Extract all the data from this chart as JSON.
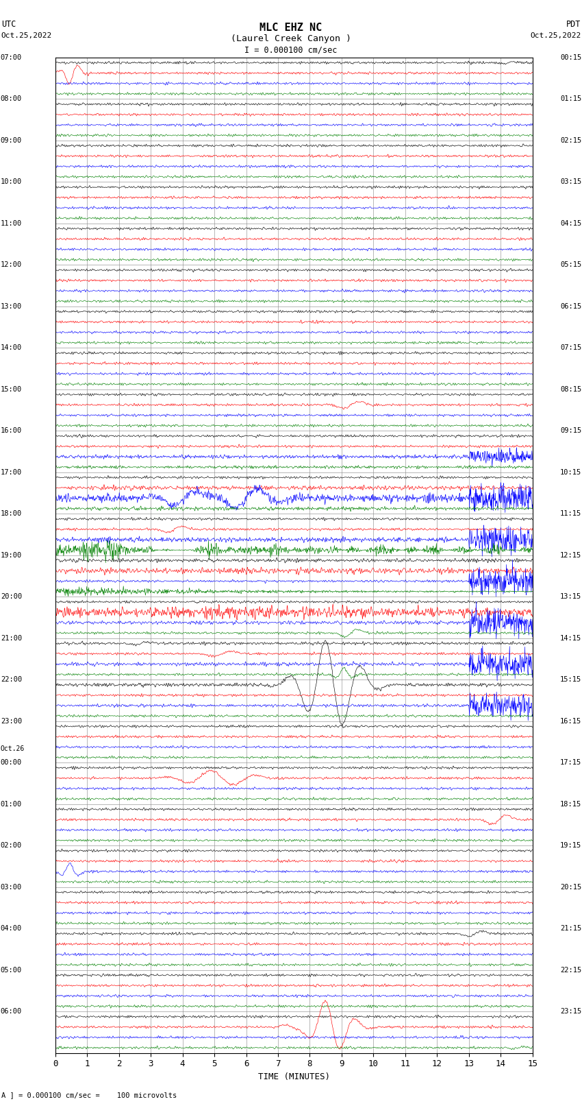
{
  "title_line1": "MLC EHZ NC",
  "title_line2": "(Laurel Creek Canyon )",
  "scale_label": "I = 0.000100 cm/sec",
  "left_label_top": "UTC",
  "left_label_date": "Oct.25,2022",
  "right_label_top": "PDT",
  "right_label_date": "Oct.25,2022",
  "bottom_label": "TIME (MINUTES)",
  "bottom_note": "A ] = 0.000100 cm/sec =    100 microvolts",
  "background_color": "white",
  "grid_color": "#888888",
  "fig_width": 8.5,
  "fig_height": 16.13,
  "x_min": 0,
  "x_max": 15,
  "x_ticks": [
    0,
    1,
    2,
    3,
    4,
    5,
    6,
    7,
    8,
    9,
    10,
    11,
    12,
    13,
    14,
    15
  ],
  "utc_hour_labels": [
    [
      0,
      "07:00"
    ],
    [
      4,
      "08:00"
    ],
    [
      8,
      "09:00"
    ],
    [
      12,
      "10:00"
    ],
    [
      16,
      "11:00"
    ],
    [
      20,
      "12:00"
    ],
    [
      24,
      "13:00"
    ],
    [
      28,
      "14:00"
    ],
    [
      32,
      "15:00"
    ],
    [
      36,
      "16:00"
    ],
    [
      40,
      "17:00"
    ],
    [
      44,
      "18:00"
    ],
    [
      48,
      "19:00"
    ],
    [
      52,
      "20:00"
    ],
    [
      56,
      "21:00"
    ],
    [
      60,
      "22:00"
    ],
    [
      64,
      "23:00"
    ],
    [
      67,
      "Oct.26"
    ],
    [
      68,
      "00:00"
    ],
    [
      72,
      "01:00"
    ],
    [
      76,
      "02:00"
    ],
    [
      80,
      "03:00"
    ],
    [
      84,
      "04:00"
    ],
    [
      88,
      "05:00"
    ],
    [
      92,
      "06:00"
    ]
  ],
  "pdt_hour_labels": [
    [
      0,
      "00:15"
    ],
    [
      4,
      "01:15"
    ],
    [
      8,
      "02:15"
    ],
    [
      12,
      "03:15"
    ],
    [
      16,
      "04:15"
    ],
    [
      20,
      "05:15"
    ],
    [
      24,
      "06:15"
    ],
    [
      28,
      "07:15"
    ],
    [
      32,
      "08:15"
    ],
    [
      36,
      "09:15"
    ],
    [
      40,
      "10:15"
    ],
    [
      44,
      "11:15"
    ],
    [
      48,
      "12:15"
    ],
    [
      52,
      "13:15"
    ],
    [
      56,
      "14:15"
    ],
    [
      60,
      "15:15"
    ],
    [
      64,
      "16:15"
    ],
    [
      68,
      "17:15"
    ],
    [
      72,
      "18:15"
    ],
    [
      76,
      "19:15"
    ],
    [
      80,
      "20:15"
    ],
    [
      84,
      "21:15"
    ],
    [
      88,
      "22:15"
    ],
    [
      92,
      "23:15"
    ]
  ],
  "n_hour_blocks": 24,
  "traces_per_block": 4,
  "row_colors": [
    "black",
    "red",
    "blue",
    "green"
  ],
  "noise_base": 0.12,
  "trace_scale": 0.42
}
